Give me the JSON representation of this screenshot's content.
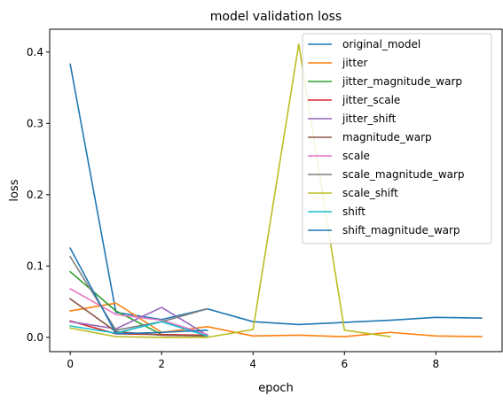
{
  "chart_data": {
    "type": "line",
    "title": "model validation loss",
    "xlabel": "epoch",
    "ylabel": "loss",
    "xlim": [
      -0.45,
      9.45
    ],
    "ylim": [
      -0.02,
      0.432
    ],
    "xticks": [
      0,
      2,
      4,
      6,
      8
    ],
    "yticks": [
      0.0,
      0.1,
      0.2,
      0.3,
      0.4
    ],
    "xtick_labels": [
      "0",
      "2",
      "4",
      "6",
      "8"
    ],
    "ytick_labels": [
      "0.0",
      "0.1",
      "0.2",
      "0.3",
      "0.4"
    ],
    "legend_position": "upper-right",
    "grid": false,
    "series": [
      {
        "name": "original_model",
        "color": "#1f77b4",
        "x": [
          0,
          1,
          2,
          3,
          4,
          5,
          6,
          7,
          8,
          9
        ],
        "y": [
          0.383,
          0.035,
          0.025,
          0.04,
          0.022,
          0.018,
          0.021,
          0.024,
          0.028,
          0.027
        ]
      },
      {
        "name": "jitter",
        "color": "#ff7f0e",
        "x": [
          0,
          1,
          2,
          3,
          4,
          5,
          6,
          7,
          8,
          9
        ],
        "y": [
          0.037,
          0.048,
          0.007,
          0.015,
          0.002,
          0.003,
          0.001,
          0.007,
          0.002,
          0.001
        ]
      },
      {
        "name": "jitter_magnitude_warp",
        "color": "#2ca02c",
        "x": [
          0,
          1,
          2,
          3
        ],
        "y": [
          0.092,
          0.037,
          0.004,
          0.002
        ]
      },
      {
        "name": "jitter_scale",
        "color": "#d62728",
        "x": [
          0,
          1,
          2,
          3
        ],
        "y": [
          0.023,
          0.005,
          0.004,
          0.003
        ]
      },
      {
        "name": "jitter_shift",
        "color": "#9467bd",
        "x": [
          0,
          1,
          2,
          3
        ],
        "y": [
          0.022,
          0.012,
          0.042,
          0.003
        ]
      },
      {
        "name": "magnitude_warp",
        "color": "#8c564b",
        "x": [
          0,
          1,
          2,
          3
        ],
        "y": [
          0.054,
          0.008,
          0.003,
          0.002
        ]
      },
      {
        "name": "scale",
        "color": "#e377c2",
        "x": [
          0,
          1,
          2,
          3
        ],
        "y": [
          0.068,
          0.032,
          0.024,
          0.004
        ]
      },
      {
        "name": "scale_magnitude_warp",
        "color": "#7f7f7f",
        "x": [
          0,
          1,
          2,
          3
        ],
        "y": [
          0.113,
          0.01,
          0.022,
          0.04
        ]
      },
      {
        "name": "scale_shift",
        "color": "#bcbd22",
        "x": [
          0,
          1,
          2,
          3,
          4,
          5,
          6,
          7
        ],
        "y": [
          0.013,
          0.001,
          0.0,
          0.0,
          0.011,
          0.411,
          0.01,
          0.001
        ]
      },
      {
        "name": "shift",
        "color": "#17becf",
        "x": [
          0,
          1,
          2,
          3
        ],
        "y": [
          0.016,
          0.006,
          0.022,
          0.002
        ]
      },
      {
        "name": "shift_magnitude_warp",
        "color": "#1f77b4",
        "x": [
          0,
          1,
          2,
          3
        ],
        "y": [
          0.125,
          0.005,
          0.007,
          0.01
        ]
      }
    ]
  }
}
